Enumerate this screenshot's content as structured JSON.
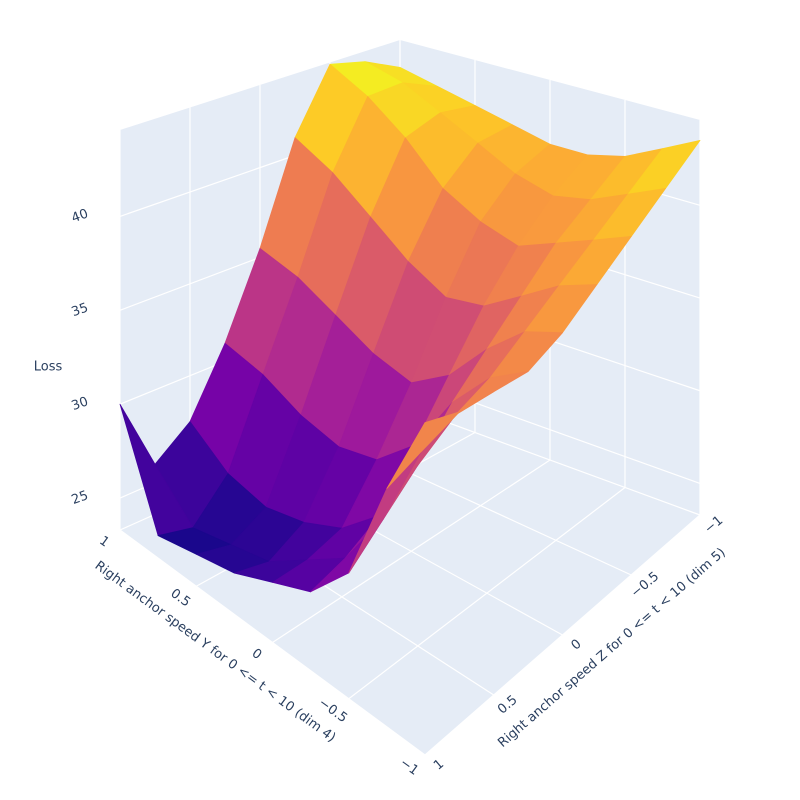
{
  "chart_data": {
    "type": "surface",
    "x": [
      -1,
      -0.75,
      -0.5,
      -0.25,
      0,
      0.25,
      0.5,
      0.75,
      1
    ],
    "y": [
      -1,
      -0.75,
      -0.5,
      -0.25,
      0,
      0.25,
      0.5,
      0.75,
      1
    ],
    "z": [
      [
        43.5,
        42.5,
        41.5,
        41,
        41,
        41.5,
        42,
        42.5,
        43
      ],
      [
        42.5,
        41.5,
        40.5,
        40,
        40.5,
        41.5,
        42.5,
        43.5,
        44
      ],
      [
        41.5,
        40.5,
        39.5,
        38.5,
        39,
        40,
        42,
        43.5,
        44.5
      ],
      [
        40.5,
        39.5,
        38,
        36.5,
        36,
        37,
        38.5,
        40,
        41
      ],
      [
        39.5,
        38.5,
        36.5,
        34,
        32.5,
        33,
        34,
        35,
        35.5
      ],
      [
        39,
        37.5,
        35,
        31.5,
        29.5,
        29,
        29.5,
        30.5,
        31
      ],
      [
        39.5,
        37,
        33,
        29,
        27,
        26,
        25.5,
        26,
        27.5
      ],
      [
        40,
        36.5,
        31.5,
        28,
        26.5,
        25,
        24.5,
        24,
        26
      ],
      [
        41,
        36,
        30,
        27.5,
        26.5,
        25.5,
        25,
        24.5,
        30
      ]
    ],
    "xlim": [
      -1,
      1
    ],
    "ylim": [
      -1,
      1
    ],
    "zlim": [
      23.3,
      44.6
    ],
    "xticks": [
      {
        "value": -1,
        "label": "−1"
      },
      {
        "value": -0.5,
        "label": "−0.5"
      },
      0,
      0.5,
      1
    ],
    "yticks": [
      {
        "value": -1,
        "label": "−1"
      },
      {
        "value": -0.5,
        "label": "−0.5"
      },
      0,
      0.5,
      1
    ],
    "zticks": [
      25,
      30,
      35,
      40
    ],
    "xaxis_title": "Right anchor speed Y for 0 <= t < 10 (dim 4)",
    "yaxis_title": "Right anchor speed Z for 0 <= t < 10 (dim 5)",
    "zaxis_title": "Loss",
    "colorscale": [
      "#0d0887",
      "#46039f",
      "#7201a8",
      "#9c179e",
      "#bd3786",
      "#d8576b",
      "#ed7953",
      "#fb9f3a",
      "#fdca26",
      "#f0f921"
    ],
    "grid": true
  }
}
